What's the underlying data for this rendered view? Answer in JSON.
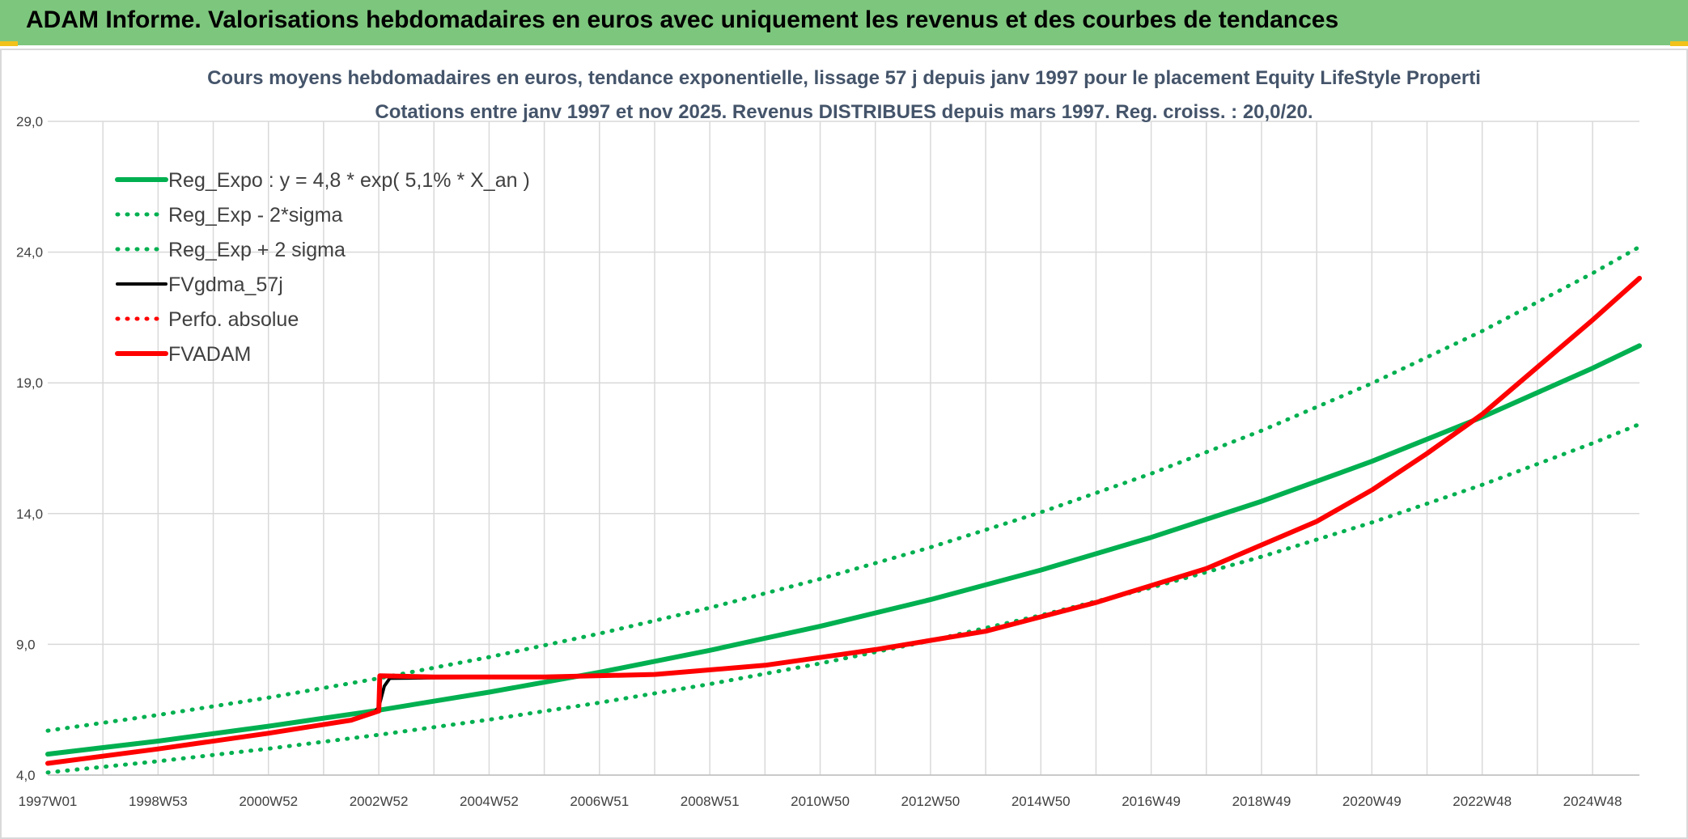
{
  "header": {
    "title": "ADAM Informe. Valorisations hebdomadaires en euros avec uniquement les revenus et des courbes de tendances"
  },
  "colors": {
    "banner": "#7dc67d",
    "trend": "#00b050",
    "gdma": "#000000",
    "adam": "#ff0000",
    "grid": "#d9d9d9"
  },
  "chart_data": {
    "type": "line",
    "title": "Cours moyens hebdomadaires en euros, tendance exponentielle, lissage 57 j depuis janv 1997 pour le placement Equity LifeStyle Properti",
    "subtitle": "Cotations entre janv 1997 et nov 2025. Revenus DISTRIBUES depuis mars 1997. Reg. croiss. : 20,0/20.",
    "xlabel": "",
    "ylabel": "",
    "x_range": [
      1997.0,
      2025.85
    ],
    "ylim": [
      4.0,
      29.0
    ],
    "y_ticks": [
      "4,0",
      "9,0",
      "14,0",
      "19,0",
      "24,0",
      "29,0"
    ],
    "x_ticks": [
      {
        "label": "1997W01",
        "x": 1997.0
      },
      {
        "label": "1998W53",
        "x": 1999.0
      },
      {
        "label": "2000W52",
        "x": 2001.0
      },
      {
        "label": "2002W52",
        "x": 2003.0
      },
      {
        "label": "2004W52",
        "x": 2005.0
      },
      {
        "label": "2006W51",
        "x": 2007.0
      },
      {
        "label": "2008W51",
        "x": 2009.0
      },
      {
        "label": "2010W50",
        "x": 2011.0
      },
      {
        "label": "2012W50",
        "x": 2013.0
      },
      {
        "label": "2014W50",
        "x": 2015.0
      },
      {
        "label": "2016W49",
        "x": 2017.0
      },
      {
        "label": "2018W49",
        "x": 2019.0
      },
      {
        "label": "2020W49",
        "x": 2021.0
      },
      {
        "label": "2022W48",
        "x": 2023.0
      },
      {
        "label": "2024W48",
        "x": 2025.0
      }
    ],
    "grid": true,
    "legend_position": "top-left",
    "series": [
      {
        "name": "Reg_Expo : y = 4,8 * exp( 5,1% *  X_an )",
        "style": "solid-thick",
        "color": "#00b050",
        "x": [
          1997.0,
          1999.0,
          2001.0,
          2003.0,
          2005.0,
          2007.0,
          2009.0,
          2011.0,
          2013.0,
          2015.0,
          2017.0,
          2019.0,
          2021.0,
          2023.0,
          2025.0,
          2025.85
        ],
        "y": [
          4.8,
          5.3,
          5.87,
          6.48,
          7.17,
          7.93,
          8.77,
          9.69,
          10.71,
          11.84,
          13.09,
          14.47,
          16.0,
          17.69,
          19.56,
          20.42
        ]
      },
      {
        "name": "Reg_Exp - 2*sigma",
        "style": "dotted",
        "color": "#00b050",
        "x": [
          1997.0,
          1999.0,
          2001.0,
          2003.0,
          2005.0,
          2007.0,
          2009.0,
          2011.0,
          2013.0,
          2015.0,
          2017.0,
          2019.0,
          2021.0,
          2023.0,
          2025.0,
          2025.85
        ],
        "y": [
          4.1,
          4.53,
          5.01,
          5.54,
          6.12,
          6.77,
          7.48,
          8.27,
          9.14,
          10.11,
          11.17,
          12.35,
          13.66,
          15.1,
          16.69,
          17.42
        ]
      },
      {
        "name": "Reg_Exp + 2 sigma",
        "style": "dotted",
        "color": "#00b050",
        "x": [
          1997.0,
          1999.0,
          2001.0,
          2003.0,
          2005.0,
          2007.0,
          2009.0,
          2011.0,
          2013.0,
          2015.0,
          2017.0,
          2019.0,
          2021.0,
          2023.0,
          2025.0,
          2025.85
        ],
        "y": [
          5.7,
          6.3,
          6.96,
          7.7,
          8.51,
          9.41,
          10.4,
          11.5,
          12.71,
          14.05,
          15.53,
          17.17,
          18.98,
          20.98,
          23.19,
          24.2
        ]
      },
      {
        "name": "FVgdma_57j",
        "style": "solid",
        "color": "#000000",
        "x": [
          1997.0,
          1999.0,
          2001.0,
          2002.5,
          2002.9,
          2003.0,
          2003.1,
          2003.2,
          2004.0,
          2006.0,
          2008.0,
          2010.0,
          2012.0,
          2014.0,
          2016.0,
          2018.0,
          2020.0,
          2021.0,
          2022.0,
          2023.0,
          2024.0,
          2025.0,
          2025.85
        ],
        "y": [
          4.45,
          5.0,
          5.6,
          6.1,
          6.35,
          6.6,
          7.4,
          7.7,
          7.72,
          7.75,
          7.85,
          8.2,
          8.8,
          9.5,
          10.6,
          11.9,
          13.7,
          14.9,
          16.3,
          17.8,
          19.6,
          21.4,
          23.0
        ]
      },
      {
        "name": "Perfo. absolue",
        "style": "dotted",
        "color": "#ff0000",
        "x": [
          1997.0,
          1999.0,
          2001.0,
          2002.5,
          2003.0,
          2003.02,
          2004.0,
          2006.0,
          2008.0,
          2010.0,
          2012.0,
          2014.0,
          2016.0,
          2018.0,
          2020.0,
          2021.0,
          2022.0,
          2023.0,
          2024.0,
          2025.0,
          2025.85
        ],
        "y": [
          4.45,
          5.0,
          5.6,
          6.1,
          6.45,
          7.8,
          7.75,
          7.75,
          7.85,
          8.2,
          8.8,
          9.5,
          10.6,
          11.9,
          13.7,
          14.9,
          16.3,
          17.8,
          19.6,
          21.4,
          23.0
        ]
      },
      {
        "name": "FVADAM",
        "style": "solid-thick",
        "color": "#ff0000",
        "x": [
          1997.0,
          1999.0,
          2001.0,
          2002.5,
          2003.0,
          2003.02,
          2004.0,
          2006.0,
          2008.0,
          2010.0,
          2012.0,
          2014.0,
          2016.0,
          2018.0,
          2020.0,
          2021.0,
          2022.0,
          2023.0,
          2024.0,
          2025.0,
          2025.85
        ],
        "y": [
          4.45,
          5.0,
          5.6,
          6.1,
          6.45,
          7.8,
          7.75,
          7.75,
          7.85,
          8.2,
          8.8,
          9.5,
          10.6,
          11.9,
          13.7,
          14.9,
          16.3,
          17.8,
          19.6,
          21.4,
          23.0
        ]
      }
    ]
  }
}
